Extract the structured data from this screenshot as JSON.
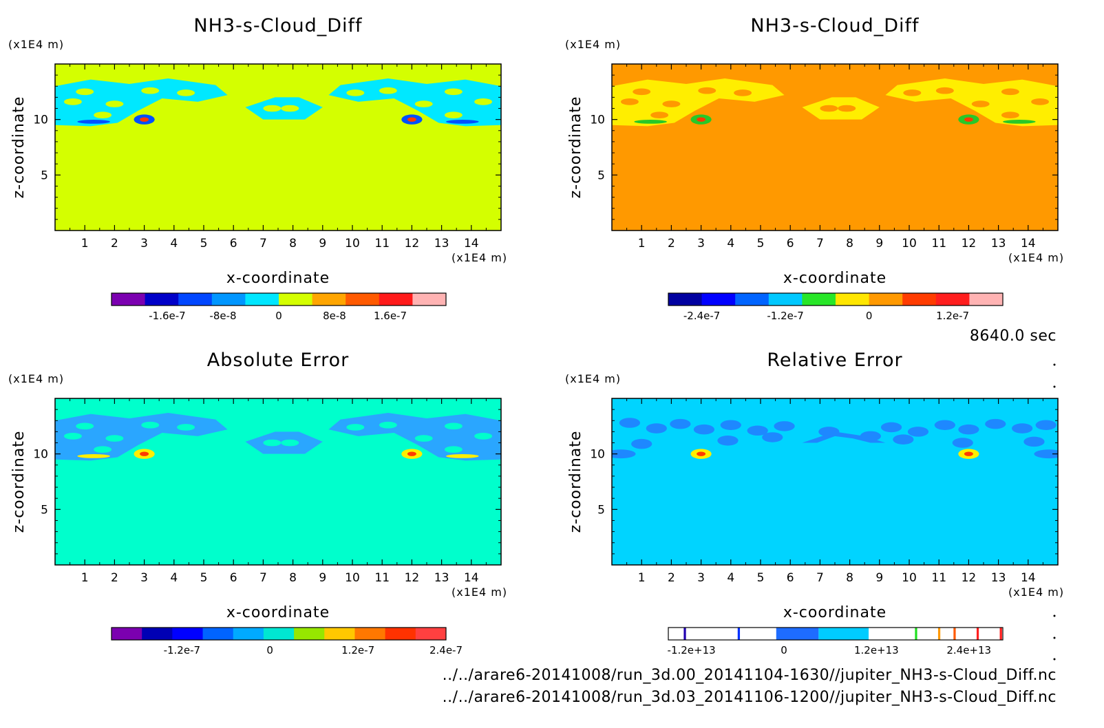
{
  "colors": {
    "background": "#ffffff",
    "diff_fill_1": "#d4ff00",
    "diff_fill_2": "#ff9900",
    "abs_fill": "#00ffcc",
    "rel_fill": "#00d4ff",
    "blob_cyan": "#00e8ff",
    "blob_yellow": "#ffee00",
    "blob_blue": "#1e88ff"
  },
  "time_label": "8640.0 sec",
  "file_paths": [
    "../../arare6-20141008/run_3d.00_20141104-1630//jupiter_NH3-s-Cloud_Diff.nc",
    "../../arare6-20141008/run_3d.03_20141106-1200//jupiter_NH3-s-Cloud_Diff.nc"
  ],
  "chart_data": [
    {
      "type": "heatmap",
      "title": "NH3-s-Cloud_Diff",
      "xlabel": "x-coordinate",
      "ylabel": "z-coordinate",
      "x_unit": "(x1E4 m)",
      "y_unit": "(x1E4 m)",
      "xlim": [
        0,
        15
      ],
      "ylim": [
        0,
        15
      ],
      "x_ticks": [
        "1",
        "2",
        "3",
        "4",
        "5",
        "6",
        "7",
        "8",
        "9",
        "10",
        "11",
        "12",
        "13",
        "14"
      ],
      "y_ticks": [
        "5",
        "10"
      ],
      "colorbar": {
        "colors": [
          "#7b00b0",
          "#0000c8",
          "#0046ff",
          "#0096ff",
          "#00e6ff",
          "#d4ff00",
          "#ffa500",
          "#ff5a00",
          "#ff1a1a",
          "#ffb3b3"
        ],
        "tick_labels": [
          "-1.6e-7",
          "-8e-8",
          "0",
          "8e-8",
          "1.6e-7"
        ],
        "tick_values": [
          -1.6e-07,
          -8e-08,
          0,
          8e-08,
          1.6e-07
        ],
        "range": [
          -2.4e-07,
          2.4e-07
        ]
      }
    },
    {
      "type": "heatmap",
      "title": "NH3-s-Cloud_Diff",
      "xlabel": "x-coordinate",
      "ylabel": "z-coordinate",
      "x_unit": "(x1E4 m)",
      "y_unit": "(x1E4 m)",
      "xlim": [
        0,
        15
      ],
      "ylim": [
        0,
        15
      ],
      "x_ticks": [
        "1",
        "2",
        "3",
        "4",
        "5",
        "6",
        "7",
        "8",
        "9",
        "10",
        "11",
        "12",
        "13",
        "14"
      ],
      "y_ticks": [
        "5",
        "10"
      ],
      "colorbar": {
        "colors": [
          "#0000a0",
          "#0000ff",
          "#0064ff",
          "#00c8ff",
          "#28e628",
          "#ffe600",
          "#ff9900",
          "#ff3c00",
          "#ff1e1e",
          "#ffb3b3"
        ],
        "tick_labels": [
          "-2.4e-7",
          "-1.2e-7",
          "0",
          "1.2e-7"
        ],
        "tick_values": [
          -2.4e-07,
          -1.2e-07,
          0,
          1.2e-07
        ],
        "range": [
          -2.88e-07,
          1.92e-07
        ]
      }
    },
    {
      "type": "heatmap",
      "title": "Absolute Error",
      "xlabel": "x-coordinate",
      "ylabel": "z-coordinate",
      "x_unit": "(x1E4 m)",
      "y_unit": "(x1E4 m)",
      "xlim": [
        0,
        15
      ],
      "ylim": [
        0,
        15
      ],
      "x_ticks": [
        "1",
        "2",
        "3",
        "4",
        "5",
        "6",
        "7",
        "8",
        "9",
        "10",
        "11",
        "12",
        "13",
        "14"
      ],
      "y_ticks": [
        "5",
        "10"
      ],
      "colorbar": {
        "colors": [
          "#7b00b0",
          "#0000b4",
          "#0000ff",
          "#0064ff",
          "#00aaff",
          "#00e6d2",
          "#96e600",
          "#ffc800",
          "#ff7800",
          "#ff3200",
          "#ff4040"
        ],
        "tick_labels": [
          "-1.2e-7",
          "0",
          "1.2e-7",
          "2.4e-7"
        ],
        "tick_values": [
          -1.2e-07,
          0,
          1.2e-07,
          2.4e-07
        ],
        "range": [
          -2.16e-07,
          2.4e-07
        ]
      }
    },
    {
      "type": "heatmap",
      "title": "Relative Error",
      "xlabel": "x-coordinate",
      "ylabel": "z-coordinate",
      "x_unit": "(x1E4 m)",
      "y_unit": "(x1E4 m)",
      "xlim": [
        0,
        15
      ],
      "ylim": [
        0,
        15
      ],
      "x_ticks": [
        "1",
        "2",
        "3",
        "4",
        "5",
        "6",
        "7",
        "8",
        "9",
        "10",
        "11",
        "12",
        "13",
        "14"
      ],
      "y_ticks": [
        "5",
        "10"
      ],
      "colorbar": {
        "segments": [
          {
            "from": -18000000000000.0,
            "to": -13000000000000.0,
            "color": "#ffffff"
          },
          {
            "from": -13000000000000.0,
            "to": -12700000000000.0,
            "color": "#2000b0"
          },
          {
            "from": -12700000000000.0,
            "to": -6000000000000.0,
            "color": "#ffffff"
          },
          {
            "from": -6000000000000.0,
            "to": -5700000000000.0,
            "color": "#0030ff"
          },
          {
            "from": -5700000000000.0,
            "to": -1000000000000.0,
            "color": "#ffffff"
          },
          {
            "from": -1000000000000.0,
            "to": 4500000000000.0,
            "color": "#1e6cff"
          },
          {
            "from": 4500000000000.0,
            "to": 11000000000000.0,
            "color": "#00ccff"
          },
          {
            "from": 11000000000000.0,
            "to": 17000000000000.0,
            "color": "#ffffff"
          },
          {
            "from": 17000000000000.0,
            "to": 17300000000000.0,
            "color": "#20e020"
          },
          {
            "from": 17300000000000.0,
            "to": 20000000000000.0,
            "color": "#ffffff"
          },
          {
            "from": 20000000000000.0,
            "to": 20300000000000.0,
            "color": "#ff9900"
          },
          {
            "from": 20300000000000.0,
            "to": 22000000000000.0,
            "color": "#ffffff"
          },
          {
            "from": 22000000000000.0,
            "to": 22300000000000.0,
            "color": "#ff5a00"
          },
          {
            "from": 22300000000000.0,
            "to": 25000000000000.0,
            "color": "#ffffff"
          },
          {
            "from": 25000000000000.0,
            "to": 25300000000000.0,
            "color": "#ff2020"
          },
          {
            "from": 25300000000000.0,
            "to": 28000000000000.0,
            "color": "#ffffff"
          },
          {
            "from": 28000000000000.0,
            "to": 28300000000000.0,
            "color": "#ff2020"
          }
        ],
        "tick_labels": [
          "-1.2e+13",
          "0",
          "1.2e+13",
          "2.4e+13"
        ],
        "tick_values": [
          -12000000000000.0,
          0,
          12000000000000.0,
          24000000000000.0
        ],
        "range": [
          -15000000000000.0,
          28400000000000.0
        ]
      }
    }
  ]
}
